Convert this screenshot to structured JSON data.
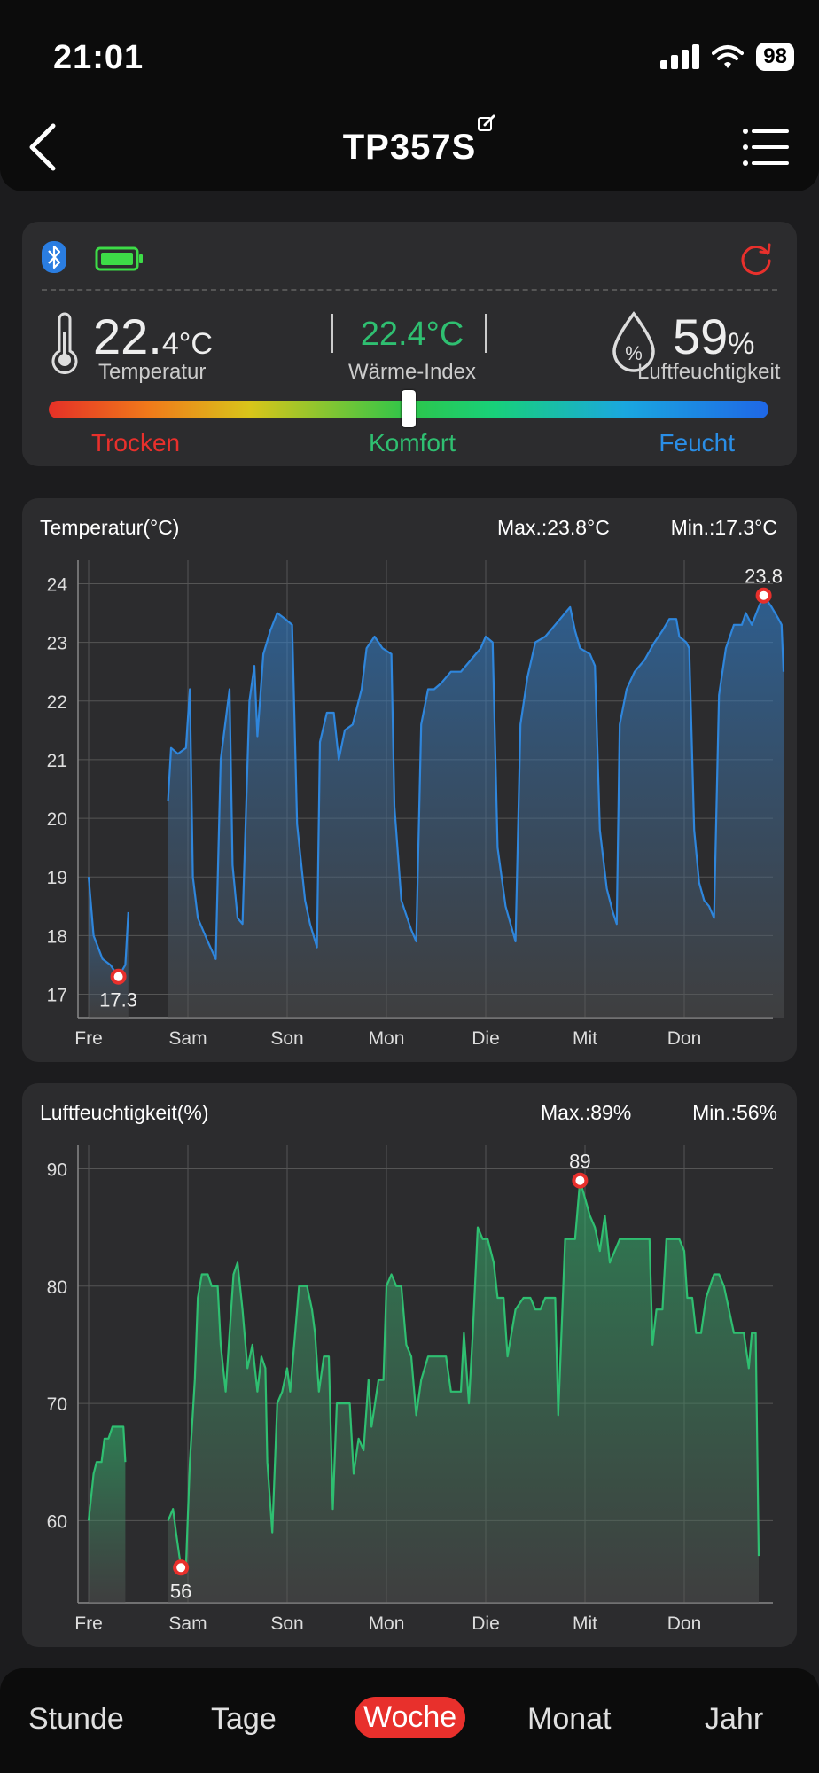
{
  "status": {
    "time": "21:01",
    "battery": "98"
  },
  "nav": {
    "title": "TP357S",
    "back_icon": "chevron-left-icon",
    "edit_icon": "edit-icon",
    "menu_icon": "menu-icon"
  },
  "readings": {
    "temperature": {
      "int": "22.",
      "dec": "4°C",
      "label": "Temperatur"
    },
    "heat_index": {
      "value": "22.4°C",
      "label": "Wärme-Index"
    },
    "humidity": {
      "int": "59",
      "unit": "%",
      "label": "Luftfeuchtigkeit"
    },
    "scale": {
      "dry": "Trocken",
      "comfort": "Komfort",
      "wet": "Feucht"
    },
    "comfort_level": 0.5,
    "colors": {
      "dry": "#e8302c",
      "comfort": "#2fbf71",
      "wet": "#2a8ee6"
    }
  },
  "chart_data": [
    {
      "type": "area",
      "title": "Temperatur(°C)",
      "max_label": "Max.:23.8°C",
      "min_label": "Min.:17.3°C",
      "categories": [
        "Fre",
        "Sam",
        "Son",
        "Mon",
        "Die",
        "Mit",
        "Don"
      ],
      "ylim": [
        16.6,
        24.4
      ],
      "yticks": [
        17,
        18,
        19,
        20,
        21,
        22,
        23,
        24
      ],
      "color": "#2f86dc",
      "segments": [
        [
          [
            0,
            19.0
          ],
          [
            0.05,
            18.0
          ],
          [
            0.14,
            17.6
          ],
          [
            0.22,
            17.5
          ],
          [
            0.3,
            17.3
          ],
          [
            0.37,
            17.5
          ],
          [
            0.4,
            18.4
          ]
        ],
        [
          [
            0.8,
            20.3
          ],
          [
            0.83,
            21.2
          ],
          [
            0.9,
            21.1
          ],
          [
            0.98,
            21.2
          ],
          [
            1.02,
            22.2
          ],
          [
            1.05,
            19.0
          ],
          [
            1.1,
            18.3
          ],
          [
            1.2,
            17.9
          ],
          [
            1.28,
            17.6
          ],
          [
            1.33,
            21.0
          ],
          [
            1.42,
            22.2
          ],
          [
            1.45,
            19.2
          ],
          [
            1.5,
            18.3
          ],
          [
            1.55,
            18.2
          ],
          [
            1.62,
            22.0
          ],
          [
            1.67,
            22.6
          ],
          [
            1.7,
            21.4
          ],
          [
            1.76,
            22.8
          ],
          [
            1.83,
            23.2
          ],
          [
            1.9,
            23.5
          ],
          [
            1.98,
            23.4
          ],
          [
            2.05,
            23.3
          ],
          [
            2.1,
            19.9
          ],
          [
            2.18,
            18.6
          ],
          [
            2.23,
            18.2
          ],
          [
            2.3,
            17.8
          ],
          [
            2.33,
            21.3
          ],
          [
            2.4,
            21.8
          ],
          [
            2.47,
            21.8
          ],
          [
            2.52,
            21.0
          ],
          [
            2.58,
            21.5
          ],
          [
            2.66,
            21.6
          ],
          [
            2.75,
            22.2
          ],
          [
            2.8,
            22.9
          ],
          [
            2.88,
            23.1
          ],
          [
            2.96,
            22.9
          ],
          [
            3.05,
            22.8
          ],
          [
            3.08,
            20.2
          ],
          [
            3.15,
            18.6
          ],
          [
            3.25,
            18.1
          ],
          [
            3.3,
            17.9
          ],
          [
            3.35,
            21.6
          ],
          [
            3.42,
            22.2
          ],
          [
            3.48,
            22.2
          ],
          [
            3.55,
            22.3
          ],
          [
            3.65,
            22.5
          ],
          [
            3.75,
            22.5
          ],
          [
            3.85,
            22.7
          ],
          [
            3.95,
            22.9
          ],
          [
            4.0,
            23.1
          ],
          [
            4.07,
            23.0
          ],
          [
            4.12,
            19.5
          ],
          [
            4.2,
            18.5
          ],
          [
            4.25,
            18.2
          ],
          [
            4.3,
            17.9
          ],
          [
            4.35,
            21.6
          ],
          [
            4.42,
            22.4
          ],
          [
            4.5,
            23.0
          ],
          [
            4.6,
            23.1
          ],
          [
            4.7,
            23.3
          ],
          [
            4.8,
            23.5
          ],
          [
            4.85,
            23.6
          ],
          [
            4.9,
            23.2
          ],
          [
            4.95,
            22.9
          ],
          [
            5.05,
            22.8
          ],
          [
            5.1,
            22.6
          ],
          [
            5.15,
            19.8
          ],
          [
            5.22,
            18.8
          ],
          [
            5.28,
            18.4
          ],
          [
            5.32,
            18.2
          ],
          [
            5.35,
            21.6
          ],
          [
            5.42,
            22.2
          ],
          [
            5.5,
            22.5
          ],
          [
            5.6,
            22.7
          ],
          [
            5.7,
            23.0
          ],
          [
            5.78,
            23.2
          ],
          [
            5.85,
            23.4
          ],
          [
            5.92,
            23.4
          ],
          [
            5.95,
            23.1
          ],
          [
            6.02,
            23.0
          ],
          [
            6.05,
            22.9
          ],
          [
            6.1,
            19.8
          ],
          [
            6.15,
            18.9
          ],
          [
            6.2,
            18.6
          ],
          [
            6.25,
            18.5
          ],
          [
            6.3,
            18.3
          ],
          [
            6.35,
            22.1
          ],
          [
            6.42,
            22.9
          ],
          [
            6.5,
            23.3
          ],
          [
            6.58,
            23.3
          ],
          [
            6.62,
            23.5
          ],
          [
            6.68,
            23.3
          ],
          [
            6.75,
            23.6
          ],
          [
            6.8,
            23.8
          ],
          [
            6.88,
            23.6
          ],
          [
            6.95,
            23.4
          ],
          [
            6.98,
            23.3
          ],
          [
            7.0,
            22.5
          ]
        ]
      ],
      "max_point": {
        "x": 6.8,
        "y": 23.8,
        "label": "23.8"
      },
      "min_point": {
        "x": 0.3,
        "y": 17.3,
        "label": "17.3"
      }
    },
    {
      "type": "area",
      "title": "Luftfeuchtigkeit(%)",
      "max_label": "Max.:89%",
      "min_label": "Min.:56%",
      "categories": [
        "Fre",
        "Sam",
        "Son",
        "Mon",
        "Die",
        "Mit",
        "Don"
      ],
      "ylim": [
        53,
        92
      ],
      "yticks": [
        60,
        70,
        80,
        90
      ],
      "color": "#2fbf71",
      "segments": [
        [
          [
            0,
            60
          ],
          [
            0.05,
            64
          ],
          [
            0.08,
            65
          ],
          [
            0.13,
            65
          ],
          [
            0.16,
            67
          ],
          [
            0.2,
            67
          ],
          [
            0.24,
            68
          ],
          [
            0.3,
            68
          ],
          [
            0.35,
            68
          ],
          [
            0.37,
            65
          ]
        ],
        [
          [
            0.8,
            60
          ],
          [
            0.85,
            61
          ],
          [
            0.88,
            59
          ],
          [
            0.93,
            56
          ],
          [
            0.98,
            56
          ],
          [
            1.02,
            65
          ],
          [
            1.07,
            72
          ],
          [
            1.1,
            79
          ],
          [
            1.14,
            81
          ],
          [
            1.2,
            81
          ],
          [
            1.24,
            80
          ],
          [
            1.3,
            80
          ],
          [
            1.33,
            75
          ],
          [
            1.38,
            71
          ],
          [
            1.42,
            76
          ],
          [
            1.46,
            81
          ],
          [
            1.5,
            82
          ],
          [
            1.55,
            78
          ],
          [
            1.6,
            73
          ],
          [
            1.65,
            75
          ],
          [
            1.7,
            71
          ],
          [
            1.74,
            74
          ],
          [
            1.78,
            73
          ],
          [
            1.8,
            65
          ],
          [
            1.85,
            59
          ],
          [
            1.9,
            70
          ],
          [
            1.95,
            71
          ],
          [
            2.0,
            73
          ],
          [
            2.03,
            71
          ],
          [
            2.08,
            76
          ],
          [
            2.12,
            80
          ],
          [
            2.2,
            80
          ],
          [
            2.25,
            78
          ],
          [
            2.28,
            76
          ],
          [
            2.32,
            71
          ],
          [
            2.37,
            74
          ],
          [
            2.42,
            74
          ],
          [
            2.46,
            61
          ],
          [
            2.5,
            70
          ],
          [
            2.58,
            70
          ],
          [
            2.63,
            70
          ],
          [
            2.67,
            64
          ],
          [
            2.72,
            67
          ],
          [
            2.77,
            66
          ],
          [
            2.82,
            72
          ],
          [
            2.85,
            68
          ],
          [
            2.92,
            72
          ],
          [
            2.97,
            72
          ],
          [
            3.0,
            80
          ],
          [
            3.05,
            81
          ],
          [
            3.1,
            80
          ],
          [
            3.15,
            80
          ],
          [
            3.2,
            75
          ],
          [
            3.25,
            74
          ],
          [
            3.3,
            69
          ],
          [
            3.35,
            72
          ],
          [
            3.42,
            74
          ],
          [
            3.5,
            74
          ],
          [
            3.6,
            74
          ],
          [
            3.65,
            71
          ],
          [
            3.75,
            71
          ],
          [
            3.78,
            76
          ],
          [
            3.83,
            70
          ],
          [
            3.87,
            76
          ],
          [
            3.92,
            85
          ],
          [
            3.97,
            84
          ],
          [
            4.02,
            84
          ],
          [
            4.08,
            82
          ],
          [
            4.12,
            79
          ],
          [
            4.18,
            79
          ],
          [
            4.22,
            74
          ],
          [
            4.3,
            78
          ],
          [
            4.38,
            79
          ],
          [
            4.45,
            79
          ],
          [
            4.5,
            78
          ],
          [
            4.55,
            78
          ],
          [
            4.6,
            79
          ],
          [
            4.7,
            79
          ],
          [
            4.73,
            69
          ],
          [
            4.8,
            84
          ],
          [
            4.85,
            84
          ],
          [
            4.9,
            84
          ],
          [
            4.95,
            89
          ],
          [
            5.05,
            86
          ],
          [
            5.1,
            85
          ],
          [
            5.15,
            83
          ],
          [
            5.2,
            86
          ],
          [
            5.25,
            82
          ],
          [
            5.3,
            83
          ],
          [
            5.35,
            84
          ],
          [
            5.45,
            84
          ],
          [
            5.55,
            84
          ],
          [
            5.65,
            84
          ],
          [
            5.68,
            75
          ],
          [
            5.72,
            78
          ],
          [
            5.78,
            78
          ],
          [
            5.82,
            84
          ],
          [
            5.88,
            84
          ],
          [
            5.95,
            84
          ],
          [
            6.0,
            83
          ],
          [
            6.03,
            79
          ],
          [
            6.08,
            79
          ],
          [
            6.12,
            76
          ],
          [
            6.17,
            76
          ],
          [
            6.22,
            79
          ],
          [
            6.3,
            81
          ],
          [
            6.35,
            81
          ],
          [
            6.4,
            80
          ],
          [
            6.45,
            78
          ],
          [
            6.5,
            76
          ],
          [
            6.55,
            76
          ],
          [
            6.6,
            76
          ],
          [
            6.65,
            73
          ],
          [
            6.68,
            76
          ],
          [
            6.72,
            76
          ],
          [
            6.75,
            57
          ]
        ]
      ],
      "max_point": {
        "x": 4.95,
        "y": 89,
        "label": "89"
      },
      "min_point": {
        "x": 0.93,
        "y": 56,
        "label": "56"
      }
    }
  ],
  "tabs": [
    "Stunde",
    "Tage",
    "Woche",
    "Monat",
    "Jahr"
  ],
  "active_tab": "Woche"
}
